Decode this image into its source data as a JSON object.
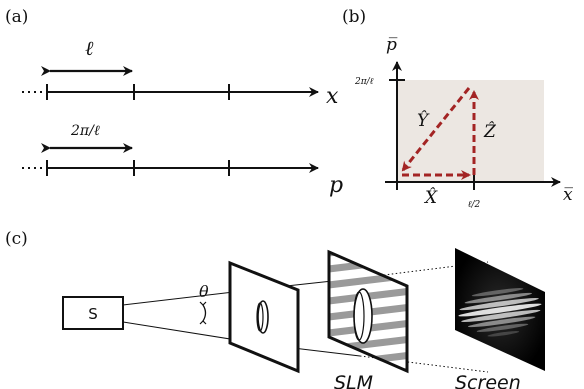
{
  "panels": {
    "a": {
      "label": "(a)",
      "x_axis_label": "x",
      "p_axis_label": "p",
      "x_spacing_label": "ℓ",
      "p_spacing_label": "2π/ℓ"
    },
    "b": {
      "label": "(b)",
      "p_axis_label": "p̅",
      "x_axis_label": "x̅",
      "p_tick_label": "2π/ℓ",
      "x_tick_label": "ℓ/2",
      "vector_x_label": "X̂",
      "vector_y_label": "Ŷ",
      "vector_z_label": "Ẑ"
    },
    "c": {
      "label": "(c)",
      "source_label": "S",
      "angle_label": "θ",
      "slm_label": "SLM",
      "screen_label": "Screen"
    }
  },
  "colors": {
    "vector": "#a32424",
    "cell_fill": "#ece7e2",
    "axis": "#111111"
  }
}
